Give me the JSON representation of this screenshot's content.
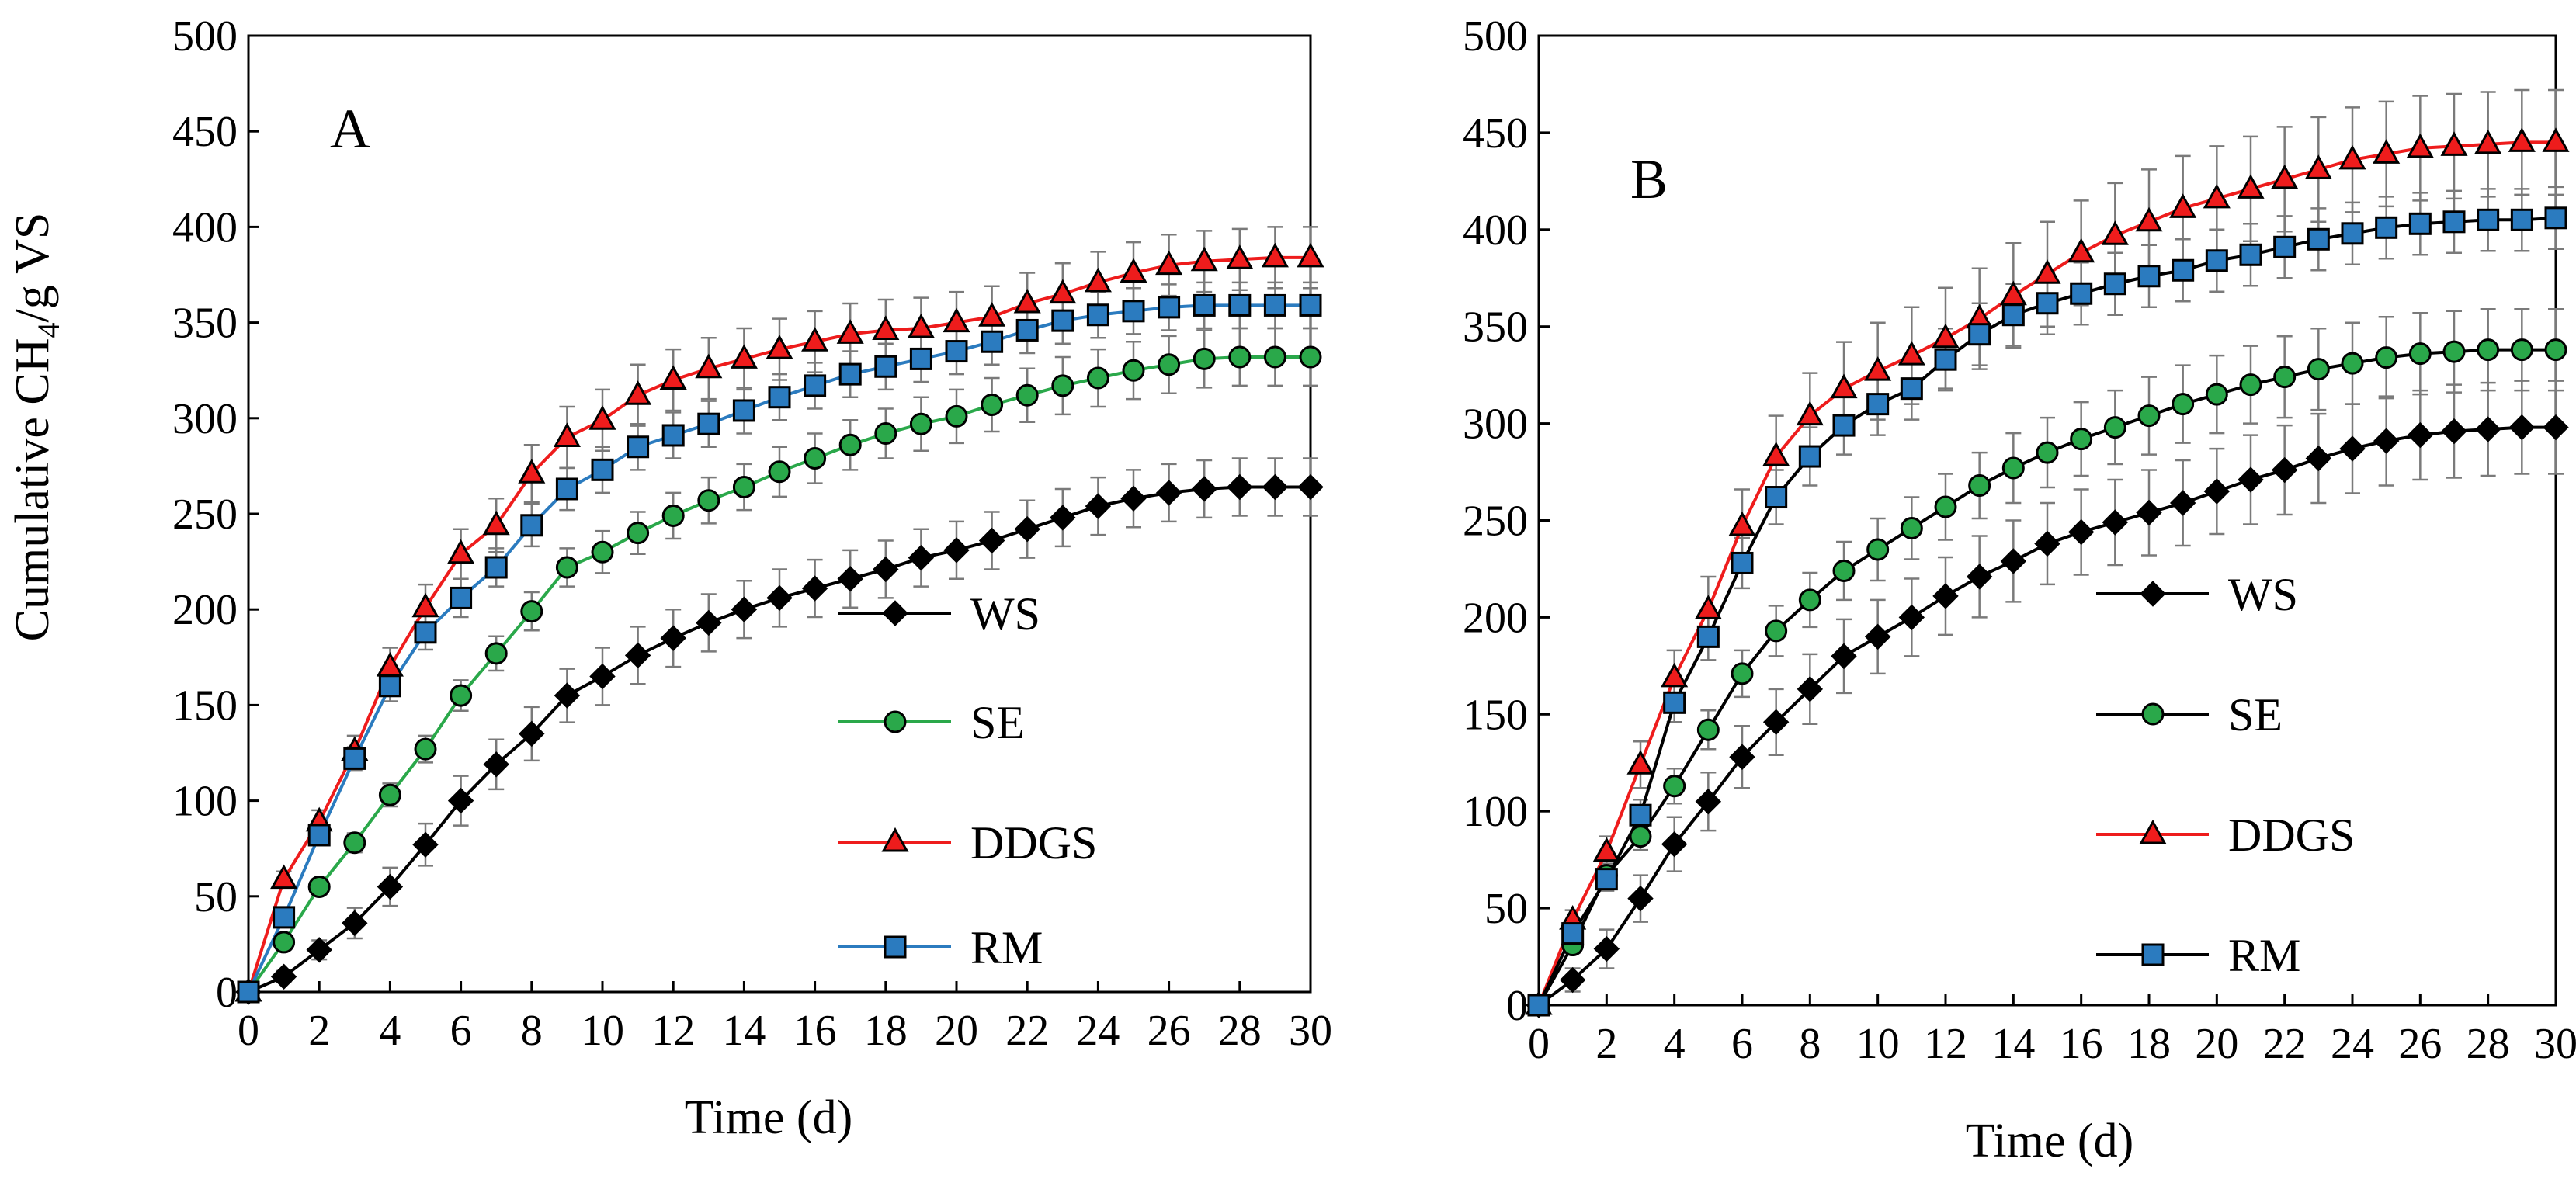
{
  "figure": {
    "ylabel_prefix": "Cumulative CH",
    "ylabel_sub": "4",
    "ylabel_suffix": "/g VS"
  },
  "chart_data": [
    {
      "type": "line",
      "panel": "A",
      "xlabel": "Time (d)",
      "ylabel": "Cumulative CH4/g VS",
      "xlim": [
        0,
        30
      ],
      "ylim": [
        0,
        500
      ],
      "xticks": [
        "0",
        "2",
        "4",
        "6",
        "8",
        "10",
        "12",
        "14",
        "16",
        "18",
        "20",
        "22",
        "24",
        "26",
        "28",
        "30"
      ],
      "yticks": [
        "0",
        "50",
        "100",
        "150",
        "200",
        "250",
        "300",
        "350",
        "400",
        "450",
        "500"
      ],
      "legend_position": "bottom-right",
      "x": [
        0,
        1,
        2,
        3,
        4,
        5,
        6,
        7,
        8,
        9,
        10,
        11,
        12,
        13,
        14,
        15,
        16,
        17,
        18,
        19,
        20,
        21,
        22,
        23,
        24,
        25,
        26,
        27,
        28,
        29,
        30
      ],
      "series": [
        {
          "name": "WS",
          "marker": "diamond",
          "line_color": "#000000",
          "fill": "#000000",
          "values": [
            0,
            8,
            22,
            36,
            55,
            77,
            100,
            119,
            135,
            155,
            165,
            176,
            185,
            193,
            200,
            206,
            211,
            216,
            221,
            227,
            231,
            236,
            242,
            248,
            254,
            258,
            261,
            263,
            264,
            264,
            264
          ],
          "error": [
            0,
            3,
            5,
            8,
            10,
            11,
            13,
            13,
            14,
            14,
            15,
            15,
            15,
            15,
            15,
            15,
            15,
            15,
            15,
            15,
            15,
            15,
            15,
            15,
            15,
            15,
            15,
            15,
            15,
            15,
            15
          ]
        },
        {
          "name": "SE",
          "marker": "circle",
          "line_color": "#2aa84a",
          "fill": "#2aa84a",
          "values": [
            0,
            26,
            55,
            78,
            103,
            127,
            155,
            177,
            199,
            222,
            230,
            240,
            249,
            257,
            264,
            272,
            279,
            286,
            292,
            297,
            301,
            307,
            312,
            317,
            321,
            325,
            328,
            331,
            332,
            332,
            332
          ],
          "error": [
            0,
            3,
            4,
            5,
            6,
            7,
            8,
            9,
            10,
            10,
            11,
            11,
            12,
            12,
            12,
            13,
            13,
            13,
            13,
            14,
            14,
            14,
            14,
            15,
            15,
            15,
            15,
            15,
            15,
            15,
            15
          ]
        },
        {
          "name": "DDGS",
          "marker": "triangle",
          "line_color": "#ee1c1c",
          "fill": "#ee1c1c",
          "values": [
            0,
            59,
            89,
            126,
            170,
            201,
            229,
            244,
            271,
            290,
            299,
            312,
            320,
            326,
            331,
            336,
            340,
            344,
            346,
            347,
            350,
            353,
            360,
            365,
            371,
            376,
            380,
            382,
            383,
            384,
            384
          ],
          "error": [
            0,
            4,
            6,
            8,
            10,
            12,
            13,
            14,
            15,
            16,
            16,
            16,
            16,
            16,
            16,
            16,
            16,
            16,
            16,
            16,
            16,
            16,
            16,
            16,
            16,
            16,
            16,
            16,
            16,
            16,
            16
          ]
        },
        {
          "name": "RM",
          "marker": "square",
          "line_color": "#2b7bbf",
          "fill": "#2b7bbf",
          "values": [
            0,
            39,
            82,
            122,
            160,
            188,
            206,
            222,
            244,
            263,
            273,
            285,
            291,
            297,
            304,
            311,
            317,
            323,
            327,
            331,
            335,
            340,
            346,
            351,
            354,
            356,
            358,
            359,
            359,
            359,
            359
          ],
          "error": [
            0,
            3,
            5,
            6,
            8,
            9,
            10,
            10,
            11,
            11,
            12,
            12,
            12,
            12,
            12,
            12,
            12,
            12,
            12,
            12,
            12,
            12,
            12,
            12,
            12,
            12,
            12,
            12,
            12,
            12,
            12
          ]
        }
      ]
    },
    {
      "type": "line",
      "panel": "B",
      "xlabel": "Time (d)",
      "ylabel": "",
      "xlim": [
        0,
        30
      ],
      "ylim": [
        0,
        500
      ],
      "xticks": [
        "0",
        "2",
        "4",
        "6",
        "8",
        "10",
        "12",
        "14",
        "16",
        "18",
        "20",
        "22",
        "24",
        "26",
        "28",
        "30"
      ],
      "yticks": [
        "0",
        "50",
        "100",
        "150",
        "200",
        "250",
        "300",
        "350",
        "400",
        "450",
        "500"
      ],
      "legend_position": "bottom-right",
      "x": [
        0,
        1,
        2,
        3,
        4,
        5,
        6,
        7,
        8,
        9,
        10,
        11,
        12,
        13,
        14,
        15,
        16,
        17,
        18,
        19,
        20,
        21,
        22,
        23,
        24,
        25,
        26,
        27,
        28,
        29,
        30
      ],
      "series": [
        {
          "name": "WS",
          "marker": "diamond",
          "line_color": "#000000",
          "fill": "#000000",
          "values": [
            0,
            13,
            29,
            55,
            83,
            105,
            128,
            146,
            163,
            180,
            190,
            200,
            211,
            221,
            229,
            238,
            244,
            249,
            254,
            259,
            265,
            271,
            276,
            282,
            287,
            291,
            294,
            296,
            297,
            298,
            298
          ],
          "error": [
            0,
            6,
            10,
            12,
            14,
            15,
            16,
            17,
            18,
            19,
            19,
            20,
            20,
            21,
            21,
            21,
            22,
            22,
            22,
            22,
            22,
            23,
            23,
            23,
            23,
            23,
            23,
            24,
            24,
            24,
            24
          ]
        },
        {
          "name": "SE",
          "marker": "circle",
          "line_color": "#000000",
          "fill": "#2aa84a",
          "values": [
            0,
            31,
            67,
            87,
            113,
            142,
            171,
            193,
            209,
            224,
            235,
            246,
            257,
            268,
            277,
            285,
            292,
            298,
            304,
            310,
            315,
            320,
            324,
            328,
            331,
            334,
            336,
            337,
            338,
            338,
            338
          ],
          "error": [
            0,
            4,
            6,
            7,
            9,
            10,
            12,
            13,
            14,
            15,
            16,
            16,
            17,
            17,
            18,
            18,
            19,
            19,
            20,
            20,
            20,
            20,
            21,
            21,
            21,
            21,
            21,
            21,
            21,
            21,
            21
          ]
        },
        {
          "name": "DDGS",
          "marker": "triangle",
          "line_color": "#ee1c1c",
          "fill": "#ee1c1c",
          "values": [
            0,
            44,
            79,
            124,
            169,
            204,
            247,
            283,
            304,
            318,
            327,
            335,
            344,
            354,
            366,
            377,
            388,
            397,
            404,
            411,
            416,
            421,
            426,
            431,
            436,
            439,
            442,
            443,
            444,
            445,
            445
          ],
          "error": [
            0,
            5,
            8,
            12,
            14,
            17,
            19,
            21,
            22,
            24,
            25,
            25,
            26,
            26,
            27,
            27,
            27,
            27,
            27,
            27,
            27,
            27,
            27,
            27,
            27,
            27,
            27,
            27,
            27,
            27,
            27
          ]
        },
        {
          "name": "RM",
          "marker": "square",
          "line_color": "#000000",
          "fill": "#2b7bbf",
          "values": [
            0,
            37,
            65,
            98,
            156,
            190,
            228,
            262,
            283,
            299,
            310,
            318,
            333,
            346,
            356,
            362,
            367,
            372,
            376,
            379,
            384,
            387,
            391,
            395,
            398,
            401,
            403,
            404,
            405,
            405,
            406
          ],
          "error": [
            0,
            4,
            6,
            8,
            10,
            12,
            13,
            14,
            15,
            15,
            16,
            16,
            16,
            16,
            16,
            16,
            16,
            16,
            16,
            16,
            16,
            16,
            16,
            16,
            16,
            16,
            16,
            16,
            16,
            16,
            16
          ]
        }
      ]
    }
  ]
}
